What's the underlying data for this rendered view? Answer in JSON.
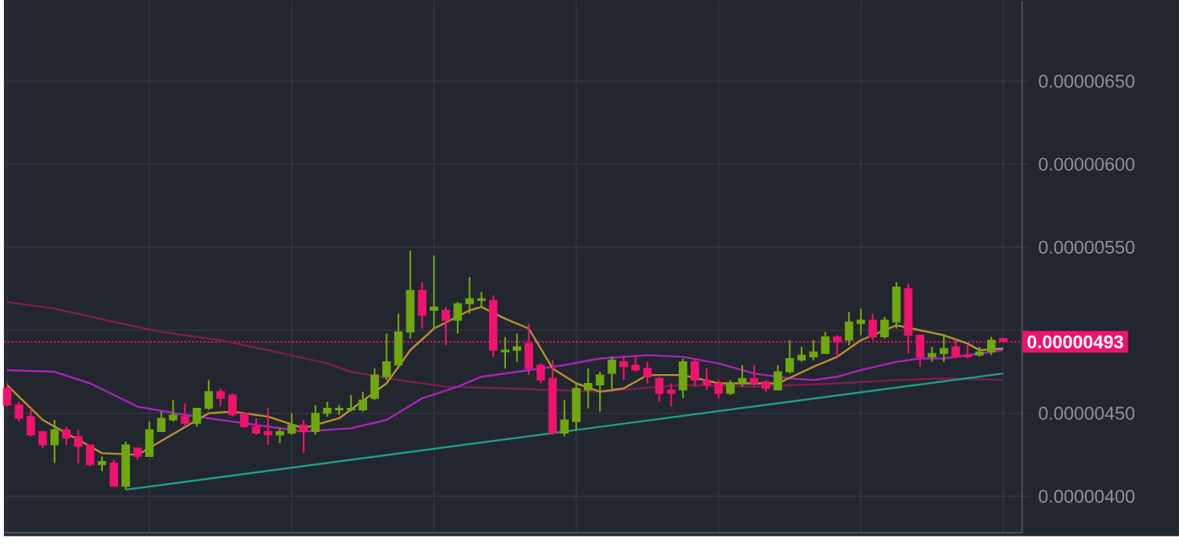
{
  "chart_data": {
    "type": "candlestick",
    "categories": [
      null,
      null,
      null,
      null,
      null,
      null,
      null,
      null,
      null,
      null,
      null,
      null,
      null,
      null,
      null,
      null,
      null,
      null,
      null,
      null,
      null,
      null,
      null,
      null,
      null,
      null,
      null,
      null,
      null,
      null,
      null,
      null,
      null,
      null,
      null,
      null,
      null,
      null,
      null,
      null,
      null,
      null,
      null,
      null,
      null,
      null,
      null,
      null,
      null,
      null,
      null,
      null,
      null,
      null,
      null,
      null,
      null,
      null,
      null,
      null,
      null,
      null,
      null,
      null,
      null,
      null,
      null,
      null,
      null,
      null,
      null,
      null,
      null,
      null,
      null,
      null,
      null,
      null,
      null,
      null,
      null,
      null,
      null,
      null,
      null
    ],
    "ohlc": [
      [
        4.65e-06,
        4.68e-06,
        4.54e-06,
        4.55e-06
      ],
      [
        4.55e-06,
        4.57e-06,
        4.45e-06,
        4.47e-06
      ],
      [
        4.48e-06,
        4.53e-06,
        4.36e-06,
        4.37e-06
      ],
      [
        4.39e-06,
        4.39e-06,
        4.29e-06,
        4.31e-06
      ],
      [
        4.31e-06,
        4.46e-06,
        4.2e-06,
        4.4e-06
      ],
      [
        4.4e-06,
        4.42e-06,
        4.31e-06,
        4.35e-06
      ],
      [
        4.36e-06,
        4.4e-06,
        4.2e-06,
        4.3e-06
      ],
      [
        4.31e-06,
        4.31e-06,
        4.18e-06,
        4.19e-06
      ],
      [
        4.19e-06,
        4.24e-06,
        4.15e-06,
        4.21e-06
      ],
      [
        4.2e-06,
        4.22e-06,
        4.06e-06,
        4.06e-06
      ],
      [
        4.06e-06,
        4.33e-06,
        4.04e-06,
        4.31e-06
      ],
      [
        4.29e-06,
        4.29e-06,
        4.22e-06,
        4.24e-06
      ],
      [
        4.24e-06,
        4.45e-06,
        4.24e-06,
        4.4e-06
      ],
      [
        4.39e-06,
        4.51e-06,
        4.39e-06,
        4.47e-06
      ],
      [
        4.46e-06,
        4.58e-06,
        4.45e-06,
        4.49e-06
      ],
      [
        4.48e-06,
        4.56e-06,
        4.42e-06,
        4.44e-06
      ],
      [
        4.44e-06,
        4.53e-06,
        4.42e-06,
        4.53e-06
      ],
      [
        4.53e-06,
        4.7e-06,
        4.52e-06,
        4.63e-06
      ],
      [
        4.63e-06,
        4.65e-06,
        4.54e-06,
        4.59e-06
      ],
      [
        4.61e-06,
        4.62e-06,
        4.48e-06,
        4.49e-06
      ],
      [
        4.5e-06,
        4.5e-06,
        4.41e-06,
        4.42e-06
      ],
      [
        4.42e-06,
        4.47e-06,
        4.37e-06,
        4.38e-06
      ],
      [
        4.39e-06,
        4.53e-06,
        4.31e-06,
        4.37e-06
      ],
      [
        4.37e-06,
        4.41e-06,
        4.32e-06,
        4.39e-06
      ],
      [
        4.38e-06,
        4.5e-06,
        4.37e-06,
        4.43e-06
      ],
      [
        4.43e-06,
        4.46e-06,
        4.26e-06,
        4.39e-06
      ],
      [
        4.39e-06,
        4.55e-06,
        4.37e-06,
        4.5e-06
      ],
      [
        4.5e-06,
        4.57e-06,
        4.48e-06,
        4.53e-06
      ],
      [
        4.52e-06,
        4.55e-06,
        4.49e-06,
        4.53e-06
      ],
      [
        4.52e-06,
        4.61e-06,
        4.51e-06,
        4.53e-06
      ],
      [
        4.52e-06,
        4.63e-06,
        4.51e-06,
        4.58e-06
      ],
      [
        4.59e-06,
        4.77e-06,
        4.58e-06,
        4.73e-06
      ],
      [
        4.72e-06,
        4.98e-06,
        4.7e-06,
        4.81e-06
      ],
      [
        4.79e-06,
        5.1e-06,
        4.77e-06,
        4.99e-06
      ],
      [
        4.99e-06,
        5.48e-06,
        4.95e-06,
        5.24e-06
      ],
      [
        5.24e-06,
        5.29e-06,
        5.01e-06,
        5.09e-06
      ],
      [
        5.12e-06,
        5.45e-06,
        5.01e-06,
        5.14e-06
      ],
      [
        5.12e-06,
        5.14e-06,
        4.91e-06,
        5.06e-06
      ],
      [
        5.06e-06,
        5.17e-06,
        4.98e-06,
        5.16e-06
      ],
      [
        5.16e-06,
        5.32e-06,
        5.1e-06,
        5.19e-06
      ],
      [
        5.18e-06,
        5.23e-06,
        5.14e-06,
        5.19e-06
      ],
      [
        5.18e-06,
        5.21e-06,
        4.84e-06,
        4.88e-06
      ],
      [
        4.87e-06,
        4.96e-06,
        4.77e-06,
        4.88e-06
      ],
      [
        4.88e-06,
        4.98e-06,
        4.81e-06,
        4.9e-06
      ],
      [
        4.92e-06,
        5.04e-06,
        4.73e-06,
        4.77e-06
      ],
      [
        4.79e-06,
        4.8e-06,
        4.68e-06,
        4.7e-06
      ],
      [
        4.71e-06,
        4.82e-06,
        4.37e-06,
        4.38e-06
      ],
      [
        4.38e-06,
        4.58e-06,
        4.36e-06,
        4.46e-06
      ],
      [
        4.45e-06,
        4.68e-06,
        4.4e-06,
        4.65e-06
      ],
      [
        4.64e-06,
        4.77e-06,
        4.53e-06,
        4.68e-06
      ],
      [
        4.67e-06,
        4.75e-06,
        4.51e-06,
        4.73e-06
      ],
      [
        4.74e-06,
        4.84e-06,
        4.63e-06,
        4.82e-06
      ],
      [
        4.81e-06,
        4.85e-06,
        4.7e-06,
        4.78e-06
      ],
      [
        4.79e-06,
        4.84e-06,
        4.75e-06,
        4.76e-06
      ],
      [
        4.77e-06,
        4.81e-06,
        4.68e-06,
        4.72e-06
      ],
      [
        4.71e-06,
        4.72e-06,
        4.57e-06,
        4.62e-06
      ],
      [
        4.64e-06,
        4.68e-06,
        4.54e-06,
        4.62e-06
      ],
      [
        4.64e-06,
        4.83e-06,
        4.59e-06,
        4.81e-06
      ],
      [
        4.81e-06,
        4.83e-06,
        4.66e-06,
        4.7e-06
      ],
      [
        4.7e-06,
        4.77e-06,
        4.64e-06,
        4.67e-06
      ],
      [
        4.68e-06,
        4.7e-06,
        4.59e-06,
        4.62e-06
      ],
      [
        4.62e-06,
        4.7e-06,
        4.61e-06,
        4.68e-06
      ],
      [
        4.68e-06,
        4.79e-06,
        4.66e-06,
        4.71e-06
      ],
      [
        4.71e-06,
        4.79e-06,
        4.66e-06,
        4.68e-06
      ],
      [
        4.69e-06,
        4.7e-06,
        4.63e-06,
        4.65e-06
      ],
      [
        4.64e-06,
        4.79e-06,
        4.64e-06,
        4.75e-06
      ],
      [
        4.75e-06,
        4.94e-06,
        4.74e-06,
        4.83e-06
      ],
      [
        4.82e-06,
        4.9e-06,
        4.81e-06,
        4.85e-06
      ],
      [
        4.84e-06,
        4.94e-06,
        4.82e-06,
        4.87e-06
      ],
      [
        4.86e-06,
        4.99e-06,
        4.86e-06,
        4.96e-06
      ],
      [
        4.96e-06,
        4.97e-06,
        4.84e-06,
        4.93e-06
      ],
      [
        4.94e-06,
        5.11e-06,
        4.91e-06,
        5.05e-06
      ],
      [
        5.04e-06,
        5.13e-06,
        4.97e-06,
        5.06e-06
      ],
      [
        5.06e-06,
        5.1e-06,
        4.94e-06,
        4.96e-06
      ],
      [
        4.96e-06,
        5.08e-06,
        4.95e-06,
        5.06e-06
      ],
      [
        5.05e-06,
        5.29e-06,
        5.01e-06,
        5.26e-06
      ],
      [
        5.25e-06,
        5.28e-06,
        4.86e-06,
        4.97e-06
      ],
      [
        4.97e-06,
        4.97e-06,
        4.78e-06,
        4.84e-06
      ],
      [
        4.84e-06,
        4.9e-06,
        4.81e-06,
        4.86e-06
      ],
      [
        4.86e-06,
        4.97e-06,
        4.81e-06,
        4.89e-06
      ],
      [
        4.9e-06,
        4.94e-06,
        4.83e-06,
        4.84e-06
      ],
      [
        4.85e-06,
        4.91e-06,
        4.83e-06,
        4.84e-06
      ],
      [
        4.85e-06,
        4.9e-06,
        4.84e-06,
        4.87e-06
      ],
      [
        4.87e-06,
        4.96e-06,
        4.85e-06,
        4.94e-06
      ],
      [
        4.95e-06,
        4.95e-06,
        4.93e-06,
        4.93e-06
      ]
    ],
    "colors": [
      "#f0136d",
      "#f0136d",
      "#f0136d",
      "#f0136d",
      "#6fa70f",
      "#f0136d",
      "#f0136d",
      "#f0136d",
      "#6fa70f",
      "#f0136d",
      "#6fa70f",
      "#f0136d",
      "#6fa70f",
      "#6fa70f",
      "#6fa70f",
      "#f0136d",
      "#6fa70f",
      "#6fa70f",
      "#f0136d",
      "#f0136d",
      "#f0136d",
      "#f0136d",
      "#f0136d",
      "#6fa70f",
      "#6fa70f",
      "#f0136d",
      "#6fa70f",
      "#6fa70f",
      "#6fa70f",
      "#6fa70f",
      "#6fa70f",
      "#6fa70f",
      "#6fa70f",
      "#6fa70f",
      "#6fa70f",
      "#f0136d",
      "#6fa70f",
      "#f0136d",
      "#6fa70f",
      "#6fa70f",
      "#6fa70f",
      "#f0136d",
      "#6fa70f",
      "#6fa70f",
      "#f0136d",
      "#f0136d",
      "#f0136d",
      "#6fa70f",
      "#6fa70f",
      "#6fa70f",
      "#6fa70f",
      "#6fa70f",
      "#f0136d",
      "#f0136d",
      "#f0136d",
      "#f0136d",
      "#f0136d",
      "#6fa70f",
      "#f0136d",
      "#f0136d",
      "#f0136d",
      "#6fa70f",
      "#6fa70f",
      "#f0136d",
      "#f0136d",
      "#6fa70f",
      "#6fa70f",
      "#6fa70f",
      "#6fa70f",
      "#6fa70f",
      "#f0136d",
      "#6fa70f",
      "#6fa70f",
      "#f0136d",
      "#6fa70f",
      "#6fa70f",
      "#f0136d",
      "#f0136d",
      "#6fa70f",
      "#6fa70f",
      "#f0136d",
      "#f0136d",
      "#6fa70f",
      "#6fa70f",
      "#f0136d"
    ],
    "series": [
      {
        "type": "line",
        "color": "#7e1f4c",
        "values": [
          5.17e-06,
          null,
          null,
          null,
          5.13e-06,
          null,
          null,
          null,
          null,
          5.05e-06,
          null,
          null,
          null,
          4.99e-06,
          null,
          null,
          null,
          null,
          4.94e-06,
          null,
          null,
          null,
          4.88e-06,
          null,
          null,
          null,
          null,
          4.8e-06,
          null,
          4.75e-06,
          null,
          null,
          null,
          4.7e-06,
          null,
          null,
          null,
          4.66e-06,
          null,
          null,
          null,
          null,
          4.65e-06,
          null,
          null,
          null,
          4.64e-06,
          null,
          null,
          null,
          4.63e-06,
          null,
          null,
          null,
          null,
          null,
          null,
          4.67e-06,
          null,
          null,
          null,
          null,
          null,
          4.66e-06,
          null,
          null,
          null,
          null,
          null,
          null,
          4.68e-06,
          null,
          null,
          null,
          null,
          4.7e-06,
          null,
          null,
          null,
          4.71e-06,
          null,
          null,
          null,
          null,
          4.7e-06
        ]
      },
      {
        "type": "line",
        "color": "#a326b5",
        "values": [
          4.76e-06,
          null,
          null,
          null,
          4.75e-06,
          null,
          null,
          4.68e-06,
          null,
          null,
          null,
          4.54e-06,
          null,
          null,
          null,
          4.49e-06,
          null,
          null,
          4.46e-06,
          null,
          null,
          null,
          4.42e-06,
          null,
          null,
          4.39e-06,
          null,
          null,
          null,
          4.41e-06,
          null,
          null,
          4.46e-06,
          null,
          null,
          4.59e-06,
          null,
          null,
          4.66e-06,
          null,
          4.72e-06,
          null,
          null,
          null,
          4.76e-06,
          null,
          null,
          4.79e-06,
          null,
          null,
          4.83e-06,
          null,
          null,
          null,
          4.85e-06,
          null,
          null,
          4.84e-06,
          null,
          null,
          4.8e-06,
          null,
          null,
          4.74e-06,
          null,
          null,
          4.71e-06,
          null,
          4.7e-06,
          null,
          4.72e-06,
          null,
          4.76e-06,
          null,
          null,
          4.81e-06,
          null,
          4.83e-06,
          null,
          4.83e-06,
          null,
          null,
          null,
          4.87e-06,
          4.88e-06
        ]
      },
      {
        "type": "line",
        "color": "#b8902e",
        "values": [
          4.67e-06,
          null,
          null,
          4.46e-06,
          null,
          null,
          null,
          null,
          4.26e-06,
          null,
          null,
          4.25e-06,
          null,
          null,
          null,
          null,
          null,
          4.5e-06,
          null,
          4.51e-06,
          null,
          null,
          4.48e-06,
          null,
          null,
          4.41e-06,
          null,
          null,
          4.47e-06,
          null,
          null,
          null,
          4.68e-06,
          null,
          4.88e-06,
          null,
          5.01e-06,
          null,
          null,
          5.12e-06,
          5.14e-06,
          null,
          5.07e-06,
          null,
          5.01e-06,
          null,
          4.77e-06,
          null,
          4.68e-06,
          null,
          4.63e-06,
          null,
          4.65e-06,
          null,
          4.73e-06,
          null,
          null,
          4.73e-06,
          null,
          null,
          4.68e-06,
          null,
          null,
          4.68e-06,
          null,
          4.68e-06,
          null,
          null,
          4.78e-06,
          null,
          4.84e-06,
          null,
          4.94e-06,
          null,
          null,
          5.03e-06,
          null,
          null,
          null,
          4.97e-06,
          null,
          4.92e-06,
          4.88e-06,
          null,
          4.89e-06
        ]
      },
      {
        "type": "line",
        "color": "#1f9e87",
        "values": [
          null,
          null,
          null,
          null,
          null,
          null,
          null,
          null,
          null,
          null,
          4.04e-06,
          null,
          null,
          null,
          null,
          null,
          null,
          null,
          null,
          null,
          null,
          null,
          null,
          null,
          null,
          null,
          null,
          null,
          null,
          null,
          null,
          null,
          null,
          null,
          null,
          null,
          null,
          null,
          null,
          null,
          null,
          null,
          null,
          null,
          null,
          null,
          null,
          null,
          null,
          null,
          null,
          null,
          null,
          null,
          null,
          null,
          null,
          null,
          null,
          null,
          null,
          null,
          null,
          null,
          null,
          null,
          null,
          null,
          null,
          null,
          null,
          null,
          null,
          null,
          null,
          null,
          null,
          null,
          null,
          null,
          null,
          null,
          null,
          null,
          4.74e-06
        ]
      }
    ],
    "ylim": [
      3.78e-06,
      6.98e-06
    ],
    "yticks": [
      {
        "value": 4e-06,
        "label": "0.00000400"
      },
      {
        "value": 4.5e-06,
        "label": "0.00000450"
      },
      {
        "value": 5e-06,
        "label": null
      },
      {
        "value": 5.5e-06,
        "label": "0.00000550"
      },
      {
        "value": 6e-06,
        "label": "0.00000600"
      },
      {
        "value": 6.5e-06,
        "label": "0.00000650"
      }
    ],
    "ref_lines": [
      {
        "axis": "y",
        "value": 4.93e-06,
        "label": "0.00000493",
        "color": "#f0136d",
        "line_style": "dotted"
      }
    ],
    "grid": true,
    "tick_labels": "y"
  }
}
